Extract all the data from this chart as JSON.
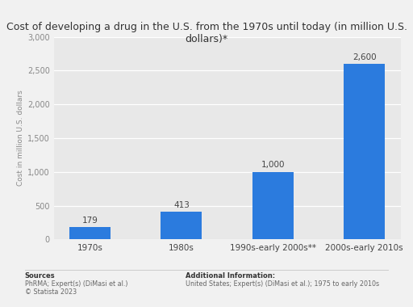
{
  "title": "Cost of developing a drug in the U.S. from the 1970s until today (in million U.S.\ndollars)*",
  "categories": [
    "1970s",
    "1980s",
    "1990s-early 2000s**",
    "2000s-early 2010s"
  ],
  "values": [
    179,
    413,
    1000,
    2600
  ],
  "bar_color": "#2b7bde",
  "ylim": [
    0,
    3000
  ],
  "yticks": [
    0,
    500,
    1000,
    1500,
    2000,
    2500,
    3000
  ],
  "ylabel": "Cost in million U.S. dollars",
  "background_color": "#f1f1f1",
  "plot_bg_color": "#e8e8e8",
  "sources_line1": "Sources",
  "sources_line2": "PhRMA; Expert(s) (DiMasi et al.)",
  "sources_line3": "© Statista 2023",
  "additional_line1": "Additional Information:",
  "additional_line2": "United States; Expert(s) (DiMasi et al.); 1975 to early 2010s"
}
